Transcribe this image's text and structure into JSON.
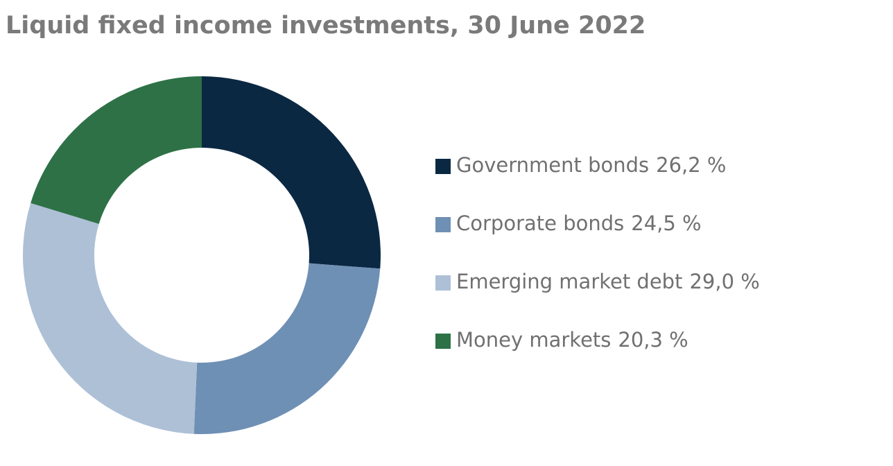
{
  "chart_data": {
    "type": "pie",
    "title": "Liquid fixed income investments, 30 June 2022",
    "categories": [
      "Government bonds",
      "Corporate bonds",
      "Emerging market debt",
      "Money markets"
    ],
    "values": [
      26.2,
      24.5,
      29.0,
      20.3
    ],
    "value_labels": [
      "26,2 %",
      "24,5 %",
      "29,0 %",
      "20,3 %"
    ],
    "colors": [
      "#0b2842",
      "#6f90b5",
      "#adc0d6",
      "#2e7147"
    ],
    "legend": "right"
  }
}
